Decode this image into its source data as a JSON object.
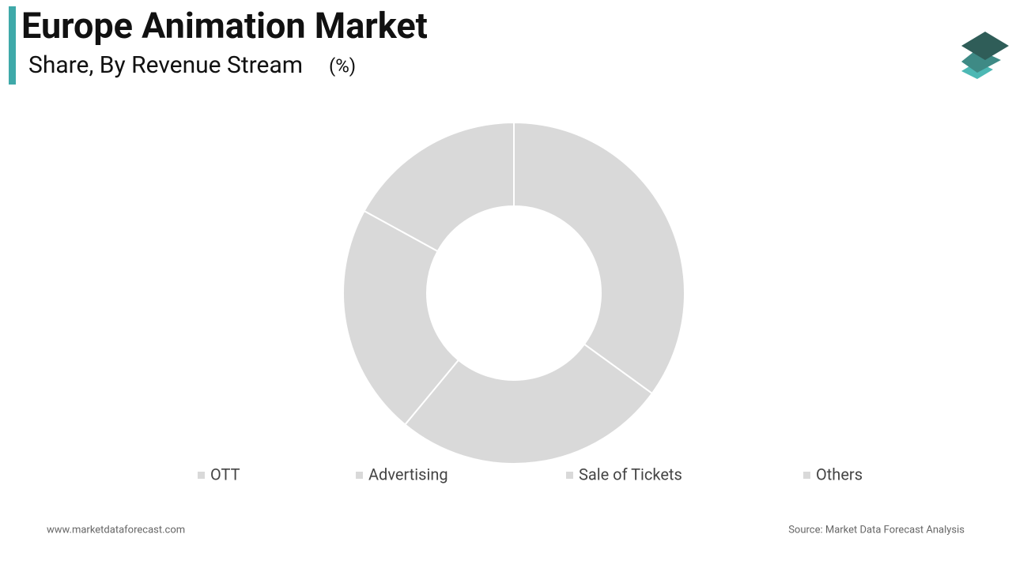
{
  "chart_data": {
    "type": "donut",
    "title": "Europe Animation Market",
    "subtitle": "Share, By Revenue Stream",
    "unit": "(%)",
    "categories": [
      "OTT",
      "Advertising",
      "Sale of Tickets",
      "Others"
    ],
    "values": [
      35,
      26,
      22,
      17
    ],
    "colors": [
      "#d9d9d9",
      "#d9d9d9",
      "#d9d9d9",
      "#d9d9d9"
    ],
    "legend": "bottom"
  },
  "footer": {
    "website": "www.marketdataforecast.com",
    "source": "Source: Market Data Forecast Analysis"
  }
}
